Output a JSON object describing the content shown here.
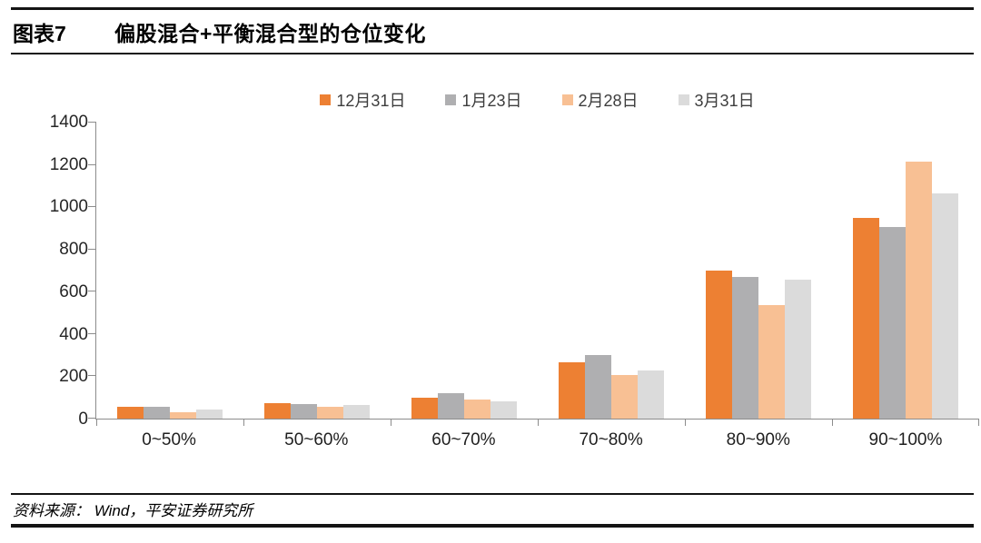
{
  "header": {
    "figure_label": "图表7",
    "title": "偏股混合+平衡混合型的仓位变化"
  },
  "chart_data": {
    "type": "bar",
    "title": "偏股混合+平衡混合型的仓位变化",
    "categories": [
      "0~50%",
      "50~60%",
      "60~70%",
      "70~80%",
      "80~90%",
      "90~100%"
    ],
    "series": [
      {
        "name": "12月31日",
        "color": "#ED8033",
        "values": [
          57,
          75,
          100,
          265,
          698,
          950
        ]
      },
      {
        "name": "1月23日",
        "color": "#AFAFB1",
        "values": [
          55,
          70,
          122,
          300,
          672,
          905
        ]
      },
      {
        "name": "2月28日",
        "color": "#F8C094",
        "values": [
          32,
          58,
          90,
          205,
          538,
          1215
        ]
      },
      {
        "name": "3月31日",
        "color": "#DBDBDB",
        "values": [
          45,
          65,
          80,
          228,
          657,
          1065
        ]
      }
    ],
    "xlabel": "",
    "ylabel": "",
    "ylim": [
      0,
      1400
    ],
    "yticks": [
      0,
      200,
      400,
      600,
      800,
      1000,
      1200,
      1400
    ],
    "grid": false,
    "legend_position": "top",
    "axis_color": "#8c8c8c"
  },
  "footer": {
    "source": "资料来源： Wind，平安证券研究所"
  }
}
